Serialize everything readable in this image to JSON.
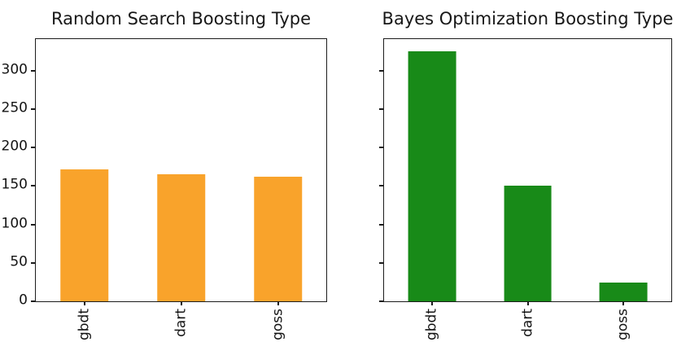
{
  "figure": {
    "background": "#ffffff",
    "spine_color": "#1c1c1c",
    "text_color": "#141414"
  },
  "chart_data": [
    {
      "type": "bar",
      "title": "Random Search Boosting Type",
      "categories": [
        "gbdt",
        "dart",
        "goss"
      ],
      "values": [
        172,
        165,
        162
      ],
      "bar_color": "#f9a32b",
      "xlabel": "",
      "ylabel": "",
      "ylim": [
        0,
        341.25
      ],
      "yticks": [
        0,
        50,
        100,
        150,
        200,
        250,
        300
      ],
      "ytick_labels_visible": true,
      "grid": false,
      "legend": "none",
      "xtick_label_rotation": 90
    },
    {
      "type": "bar",
      "title": "Bayes Optimization Boosting Type",
      "categories": [
        "gbdt",
        "dart",
        "goss"
      ],
      "values": [
        325,
        150,
        24
      ],
      "bar_color": "#188a18",
      "xlabel": "",
      "ylabel": "",
      "ylim": [
        0,
        341.25
      ],
      "yticks": [
        0,
        50,
        100,
        150,
        200,
        250,
        300
      ],
      "ytick_labels_visible": false,
      "grid": false,
      "legend": "none",
      "xtick_label_rotation": 90
    }
  ]
}
